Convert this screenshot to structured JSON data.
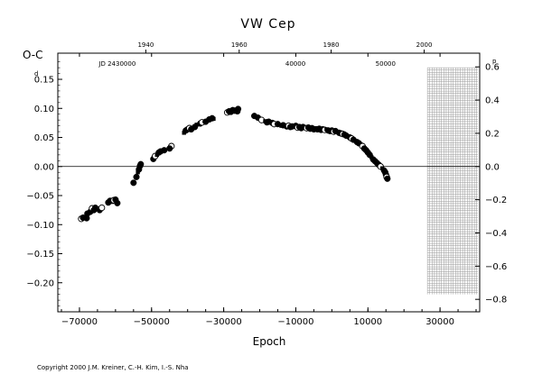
{
  "chart_data": {
    "type": "scatter",
    "title": "VW Cep",
    "ylabel": "O-C",
    "xlabel": "Epoch",
    "y_unit_sup": "d",
    "y_right_unit_sup": "p",
    "xlim": [
      -76000,
      41000
    ],
    "ylim": [
      -0.25,
      0.195
    ],
    "right_ylim": [
      -0.875,
      0.6825
    ],
    "x_ticks": [
      -70000,
      -50000,
      -30000,
      -10000,
      10000,
      30000
    ],
    "x_tick_labels": [
      "−70000",
      "−50000",
      "−30000",
      "−10000",
      "10000",
      "30000"
    ],
    "y_ticks": [
      -0.2,
      -0.15,
      -0.1,
      -0.05,
      0.0,
      0.05,
      0.1,
      0.15
    ],
    "y_tick_labels": [
      "−0.20",
      "−0.15",
      "−0.10",
      "−0.05",
      "0.00",
      "0.05",
      "0.10",
      "0.15"
    ],
    "y_right_ticks": [
      -0.8,
      -0.6,
      -0.4,
      -0.2,
      0.0,
      0.2,
      0.4,
      0.6
    ],
    "y_right_tick_labels": [
      "−0.8",
      "−0.6",
      "−0.4",
      "−0.2",
      "0.0",
      "0.2",
      "0.4",
      "0.6"
    ],
    "top_year_ticks": [
      {
        "year": "1940",
        "epoch": -51600
      },
      {
        "year": "1960",
        "epoch": -25700
      },
      {
        "year": "1980",
        "epoch": -200
      },
      {
        "year": "2000",
        "epoch": 25600
      }
    ],
    "jd_labels": [
      {
        "text": "JD 2430000",
        "epoch": -59500
      },
      {
        "text": "40000",
        "epoch": -10100
      },
      {
        "text": "50000",
        "epoch": 14900
      }
    ],
    "zero_line": 0,
    "forecast_grid_x": [
      26500,
      40500
    ],
    "forecast_grid_y": [
      -0.22,
      0.17
    ],
    "series": [
      {
        "marker": "mixed",
        "points": [
          [
            -69500,
            -0.09
          ],
          [
            -69000,
            -0.088
          ],
          [
            -68600,
            -0.087
          ],
          [
            -67800,
            -0.081
          ],
          [
            -67000,
            -0.078
          ],
          [
            -66500,
            -0.072
          ],
          [
            -66000,
            -0.075
          ],
          [
            -65600,
            -0.071
          ],
          [
            -65000,
            -0.072
          ],
          [
            -64400,
            -0.075
          ],
          [
            -63800,
            -0.071
          ],
          [
            -68000,
            -0.089
          ],
          [
            -62000,
            -0.062
          ],
          [
            -61500,
            -0.059
          ],
          [
            -61000,
            -0.061
          ],
          [
            -60500,
            -0.058
          ],
          [
            -60000,
            -0.057
          ],
          [
            -59500,
            -0.063
          ],
          [
            -55000,
            -0.028
          ],
          [
            -54200,
            -0.018
          ],
          [
            -53800,
            -0.01
          ],
          [
            -53500,
            -0.005
          ],
          [
            -53200,
            0.001
          ],
          [
            -53000,
            0.004
          ],
          [
            -49500,
            0.013
          ],
          [
            -49000,
            0.018
          ],
          [
            -48500,
            0.02
          ],
          [
            -48000,
            0.024
          ],
          [
            -47500,
            0.026
          ],
          [
            -46500,
            0.028
          ],
          [
            -44500,
            0.035
          ],
          [
            -45000,
            0.031
          ],
          [
            -41000,
            0.058
          ],
          [
            -40500,
            0.062
          ],
          [
            -40000,
            0.064
          ],
          [
            -39500,
            0.066
          ],
          [
            -39000,
            0.064
          ],
          [
            -38000,
            0.068
          ],
          [
            -37500,
            0.072
          ],
          [
            -36500,
            0.074
          ],
          [
            -36000,
            0.076
          ],
          [
            -35000,
            0.077
          ],
          [
            -34000,
            0.081
          ],
          [
            -33200,
            0.083
          ],
          [
            -32800,
            0.082
          ],
          [
            -29000,
            0.093
          ],
          [
            -28500,
            0.095
          ],
          [
            -28000,
            0.094
          ],
          [
            -27500,
            0.097
          ],
          [
            -27000,
            0.096
          ],
          [
            -26500,
            0.098
          ],
          [
            -26200,
            0.095
          ],
          [
            -26000,
            0.099
          ],
          [
            -21500,
            0.087
          ],
          [
            -20500,
            0.084
          ],
          [
            -19500,
            0.08
          ],
          [
            -18500,
            0.078
          ],
          [
            -18000,
            0.076
          ],
          [
            -17500,
            0.077
          ],
          [
            -16500,
            0.075
          ],
          [
            -16000,
            0.073
          ],
          [
            -15000,
            0.073
          ],
          [
            -14000,
            0.07
          ],
          [
            -13500,
            0.071
          ],
          [
            -12500,
            0.069
          ],
          [
            -12000,
            0.07
          ],
          [
            -11500,
            0.068
          ],
          [
            -11000,
            0.069
          ],
          [
            -10500,
            0.068
          ],
          [
            -10000,
            0.07
          ],
          [
            -9500,
            0.067
          ],
          [
            -9000,
            0.068
          ],
          [
            -8500,
            0.066
          ],
          [
            -8000,
            0.068
          ],
          [
            -7500,
            0.067
          ],
          [
            -7000,
            0.066
          ],
          [
            -6500,
            0.067
          ],
          [
            -6000,
            0.065
          ],
          [
            -5500,
            0.066
          ],
          [
            -5000,
            0.064
          ],
          [
            -4500,
            0.066
          ],
          [
            -4000,
            0.064
          ],
          [
            -3500,
            0.065
          ],
          [
            -3000,
            0.063
          ],
          [
            -2500,
            0.064
          ],
          [
            -2000,
            0.063
          ],
          [
            -1500,
            0.064
          ],
          [
            -1000,
            0.062
          ],
          [
            -500,
            0.061
          ],
          [
            0,
            0.062
          ],
          [
            500,
            0.06
          ],
          [
            1000,
            0.061
          ],
          [
            1500,
            0.059
          ],
          [
            2000,
            0.058
          ],
          [
            2500,
            0.057
          ],
          [
            3000,
            0.056
          ],
          [
            3500,
            0.055
          ],
          [
            4000,
            0.053
          ],
          [
            4500,
            0.052
          ],
          [
            5000,
            0.05
          ],
          [
            5500,
            0.048
          ],
          [
            6000,
            0.046
          ],
          [
            7000,
            0.042
          ],
          [
            7500,
            0.04
          ],
          [
            8000,
            0.038
          ],
          [
            8500,
            0.035
          ],
          [
            9000,
            0.031
          ],
          [
            9500,
            0.028
          ],
          [
            10000,
            0.024
          ],
          [
            10500,
            0.02
          ],
          [
            11000,
            0.016
          ],
          [
            11500,
            0.012
          ],
          [
            12000,
            0.009
          ],
          [
            12500,
            0.006
          ],
          [
            13000,
            0.003
          ],
          [
            13500,
            0.0
          ],
          [
            14000,
            -0.003
          ],
          [
            14500,
            -0.007
          ],
          [
            14800,
            -0.01
          ],
          [
            15000,
            -0.014
          ],
          [
            15200,
            -0.018
          ],
          [
            15400,
            -0.021
          ]
        ]
      }
    ]
  },
  "copyright": "Copyright 2000 J.M. Kreiner, C.-H. Kim, I.-S. Nha"
}
